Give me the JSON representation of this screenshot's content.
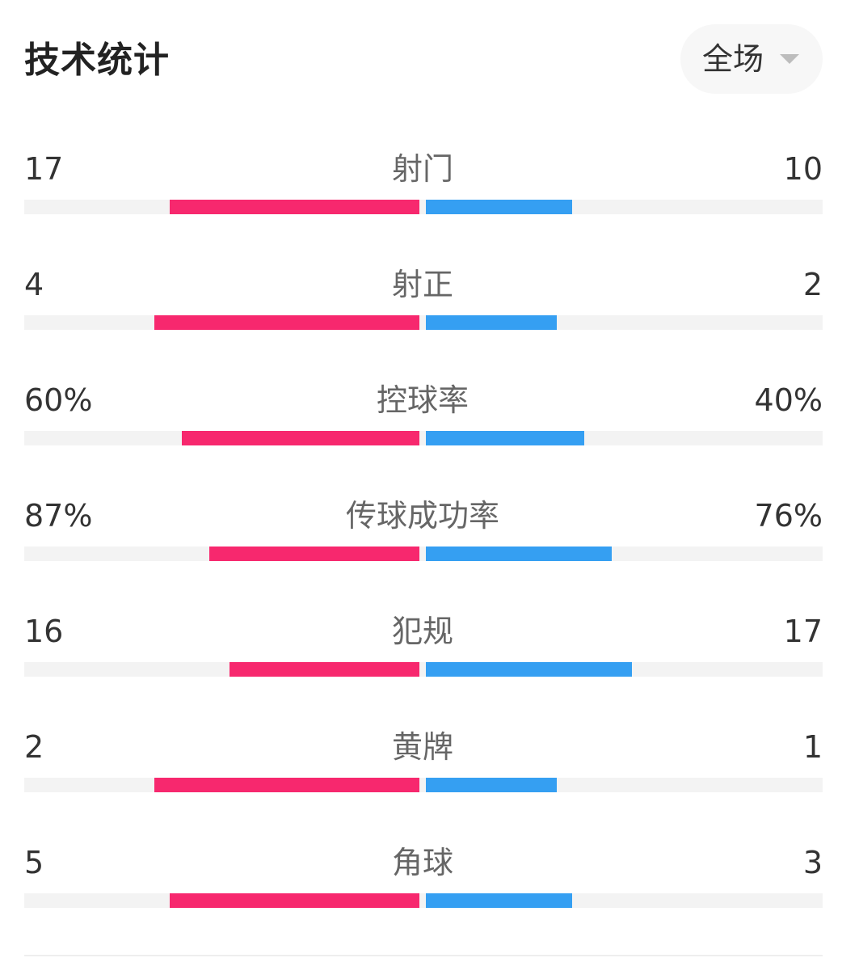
{
  "header": {
    "title": "技术统计",
    "period_selector": {
      "selected": "全场",
      "icon": "caret-down-icon"
    }
  },
  "colors": {
    "home_bar": "#f7286e",
    "away_bar": "#359ff2",
    "track": "#f3f3f3"
  },
  "stats": [
    {
      "label": "射门",
      "home": "17",
      "away": "10",
      "home_fraction": 0.63,
      "away_fraction": 0.37
    },
    {
      "label": "射正",
      "home": "4",
      "away": "2",
      "home_fraction": 0.67,
      "away_fraction": 0.33
    },
    {
      "label": "控球率",
      "home": "60%",
      "away": "40%",
      "home_fraction": 0.6,
      "away_fraction": 0.4
    },
    {
      "label": "传球成功率",
      "home": "87%",
      "away": "76%",
      "home_fraction": 0.53,
      "away_fraction": 0.47
    },
    {
      "label": "犯规",
      "home": "16",
      "away": "17",
      "home_fraction": 0.48,
      "away_fraction": 0.52
    },
    {
      "label": "黄牌",
      "home": "2",
      "away": "1",
      "home_fraction": 0.67,
      "away_fraction": 0.33
    },
    {
      "label": "角球",
      "home": "5",
      "away": "3",
      "home_fraction": 0.63,
      "away_fraction": 0.37
    }
  ]
}
